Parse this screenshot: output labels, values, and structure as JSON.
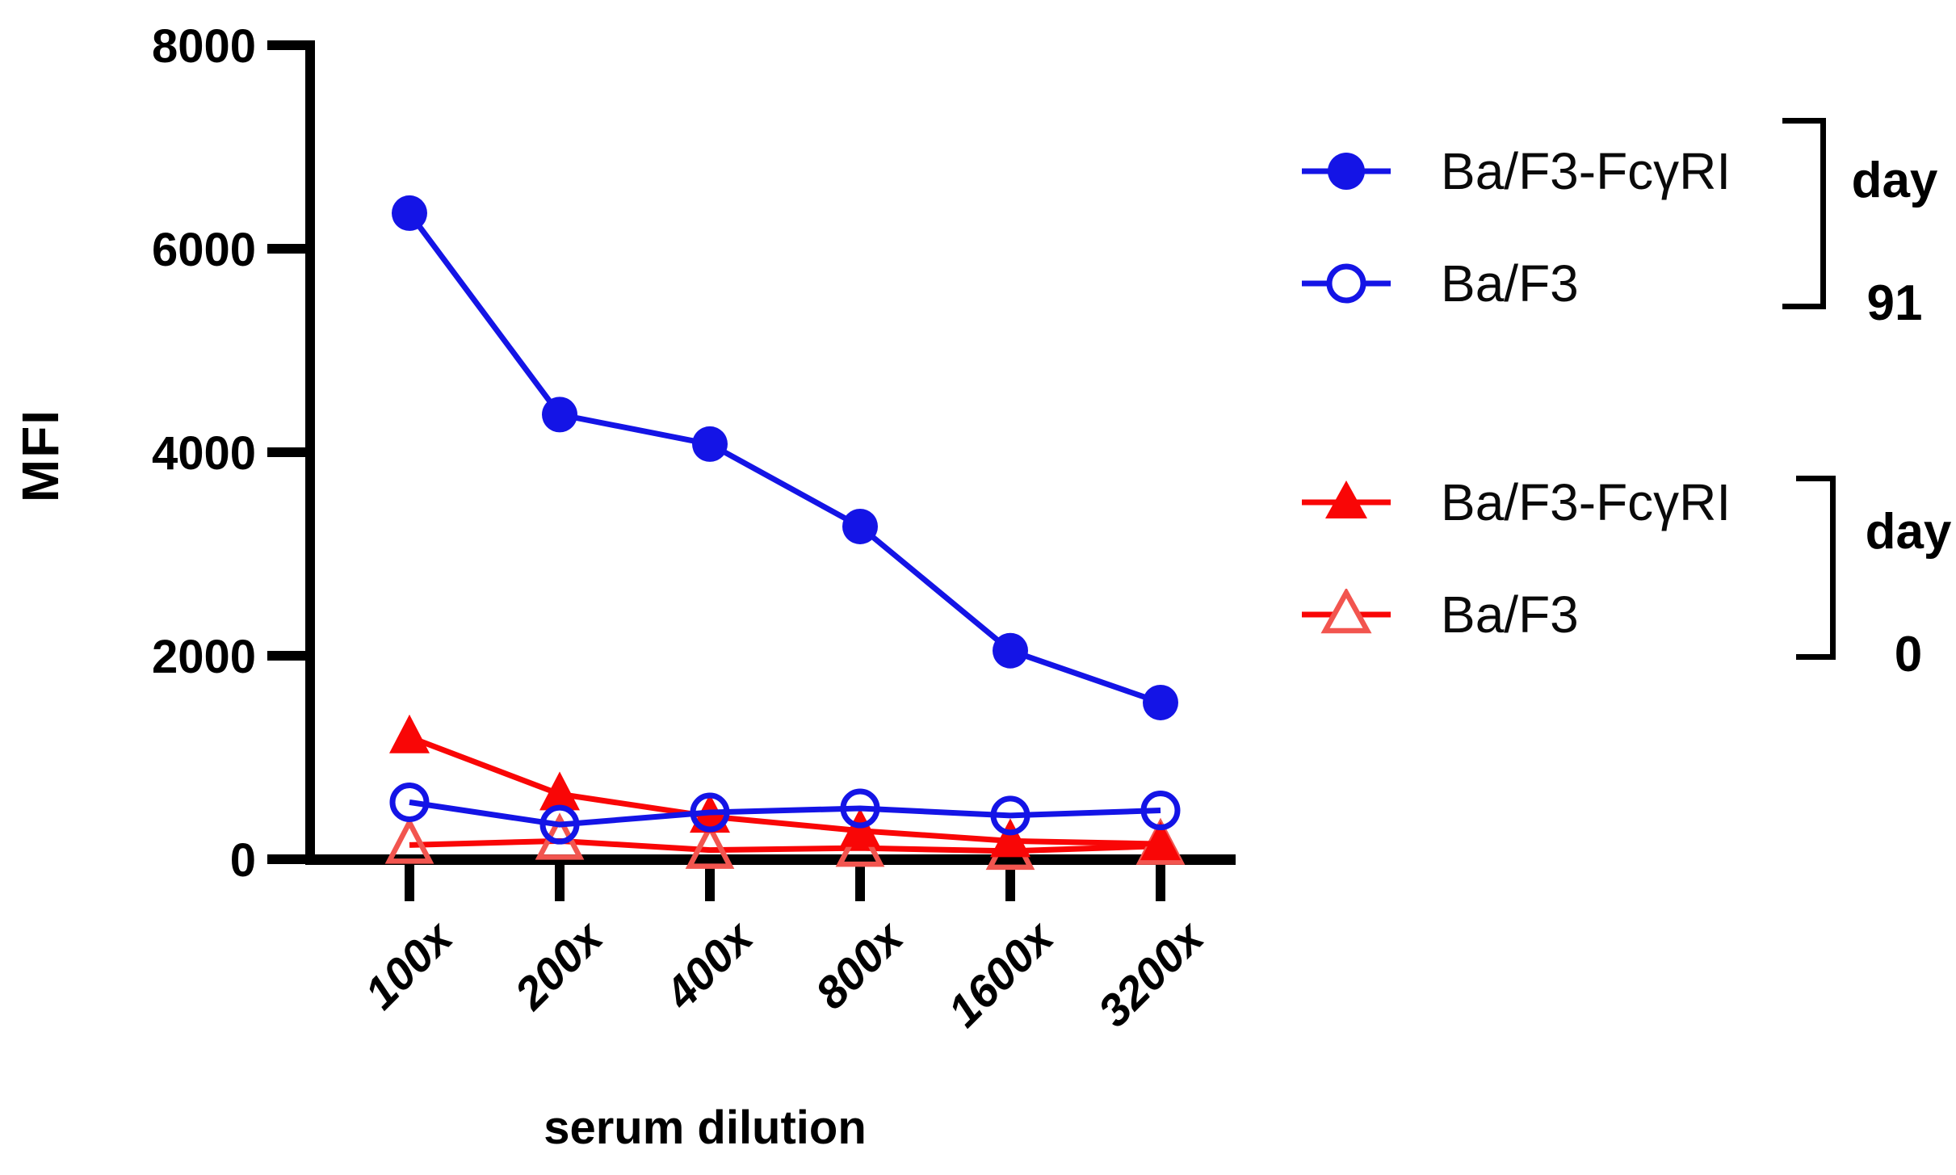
{
  "chart_data": {
    "type": "line",
    "title": "",
    "xlabel": "serum dilution",
    "ylabel": "MFI",
    "categories": [
      "100x",
      "200x",
      "400x",
      "800x",
      "1600x",
      "3200x"
    ],
    "yticks": [
      0,
      2000,
      4000,
      6000,
      8000
    ],
    "ylim": [
      0,
      8000
    ],
    "grid": false,
    "legend_position": "right",
    "series": [
      {
        "name": "Ba/F3-FcγRI",
        "group": "day 91",
        "marker": "circle",
        "fill": "filled",
        "line_color": "#1414e6",
        "marker_color": "#1414e6",
        "values": [
          6350,
          4370,
          4080,
          3270,
          2050,
          1540
        ]
      },
      {
        "name": "Ba/F3",
        "group": "day 91",
        "marker": "circle",
        "fill": "open",
        "line_color": "#1414e6",
        "marker_color": "#1414e6",
        "values": [
          560,
          340,
          460,
          500,
          430,
          480
        ]
      },
      {
        "name": "Ba/F3-FcγRI",
        "group": "day 0",
        "marker": "triangle",
        "fill": "filled",
        "line_color": "#f90606",
        "marker_color": "#f90606",
        "values": [
          1200,
          640,
          420,
          280,
          180,
          150
        ]
      },
      {
        "name": "Ba/F3",
        "group": "day 0",
        "marker": "triangle",
        "fill": "open",
        "line_color": "#f90606",
        "marker_color": "#f2554f",
        "values": [
          140,
          180,
          90,
          110,
          80,
          130
        ]
      }
    ]
  },
  "legend": {
    "groups": [
      {
        "tag_line1": "day",
        "tag_line2": "91",
        "entries": [
          {
            "label": "Ba/F3-FcγRI",
            "series": 0
          },
          {
            "label": "Ba/F3",
            "series": 1
          }
        ]
      },
      {
        "tag_line1": "day",
        "tag_line2": "0",
        "entries": [
          {
            "label": "Ba/F3-FcγRI",
            "series": 2
          },
          {
            "label": "Ba/F3",
            "series": 3
          }
        ]
      }
    ]
  },
  "colors": {
    "axis": "#000000",
    "blue_series": "#1414e6",
    "red_series": "#f90606",
    "red_open_marker": "#f2554f",
    "background": "#ffffff"
  }
}
